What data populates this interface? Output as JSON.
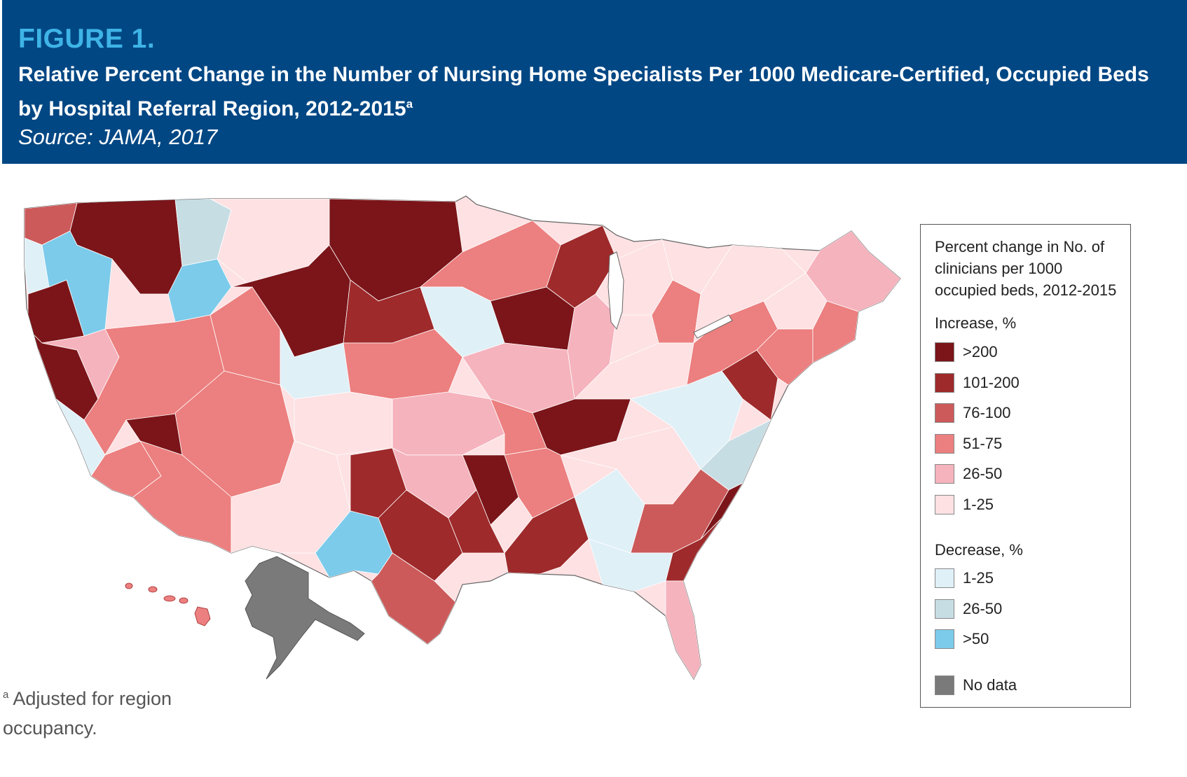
{
  "header": {
    "figure_label": "FIGURE 1.",
    "title": "Relative Percent Change in the Number of Nursing Home Specialists Per 1000 Medicare-Certified, Occupied Beds by Hospital Referral Region, 2012-2015",
    "title_superscript": "a",
    "source": "Source: JAMA, 2017"
  },
  "footnote": {
    "marker": "a",
    "text": "Adjusted for region occupancy."
  },
  "legend": {
    "heading": "Percent change in No. of clinicians per 1000 occupied beds, 2012-2015",
    "increase_label": "Increase, %",
    "decrease_label": "Decrease, %",
    "increase_items": [
      {
        "label": ">200",
        "color": "#7b1519"
      },
      {
        "label": "101-200",
        "color": "#9e2a2b"
      },
      {
        "label": "76-100",
        "color": "#cc5a5a"
      },
      {
        "label": "51-75",
        "color": "#ec7f7f"
      },
      {
        "label": "26-50",
        "color": "#f5b3bd"
      },
      {
        "label": "1-25",
        "color": "#fde1e3"
      }
    ],
    "decrease_items": [
      {
        "label": "1-25",
        "color": "#dff0f7"
      },
      {
        "label": "26-50",
        "color": "#c7dde4"
      },
      {
        "label": ">50",
        "color": "#7ccbea"
      }
    ],
    "no_data": {
      "label": "No data",
      "color": "#7a7a7a"
    }
  },
  "colors": {
    "banner": "#004784",
    "figure_label": "#3fb4e6",
    "border": "#555555"
  },
  "map": {
    "regions": [
      "Continental United States",
      "Alaska",
      "Hawaii"
    ]
  }
}
